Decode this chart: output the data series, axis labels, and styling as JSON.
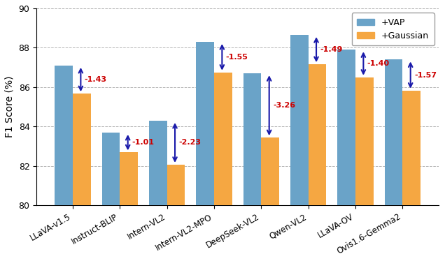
{
  "categories": [
    "LLaVA-v1.5",
    "Instruct-BLIP",
    "Intern-VL2",
    "Intern-VL2-MPO",
    "DeepSeek-VL2",
    "Qwen-VL2",
    "LLaVA-OV",
    "Ovis1.6-Gemma2"
  ],
  "vap_values": [
    87.1,
    83.7,
    84.3,
    88.3,
    86.7,
    88.65,
    87.9,
    87.4
  ],
  "gaussian_values": [
    85.67,
    82.69,
    82.07,
    86.75,
    83.44,
    87.16,
    86.5,
    85.83
  ],
  "diffs": [
    "-1.43",
    "-1.01",
    "-2.23",
    "-1.55",
    "-3.26",
    "-1.49",
    "-1.40",
    "-1.57"
  ],
  "vap_color": "#6aa3c8",
  "gaussian_color": "#f5a742",
  "diff_color_text": "#cc0000",
  "arrow_color": "#1a1aaa",
  "ylabel": "F1 Score (%)",
  "ylim": [
    80,
    90
  ],
  "ybase": 80,
  "yticks": [
    80,
    82,
    84,
    86,
    88,
    90
  ],
  "legend_vap": "+VAP",
  "legend_gaussian": "+Gaussian",
  "bar_width": 0.38,
  "figsize": [
    6.36,
    3.74
  ],
  "dpi": 100
}
